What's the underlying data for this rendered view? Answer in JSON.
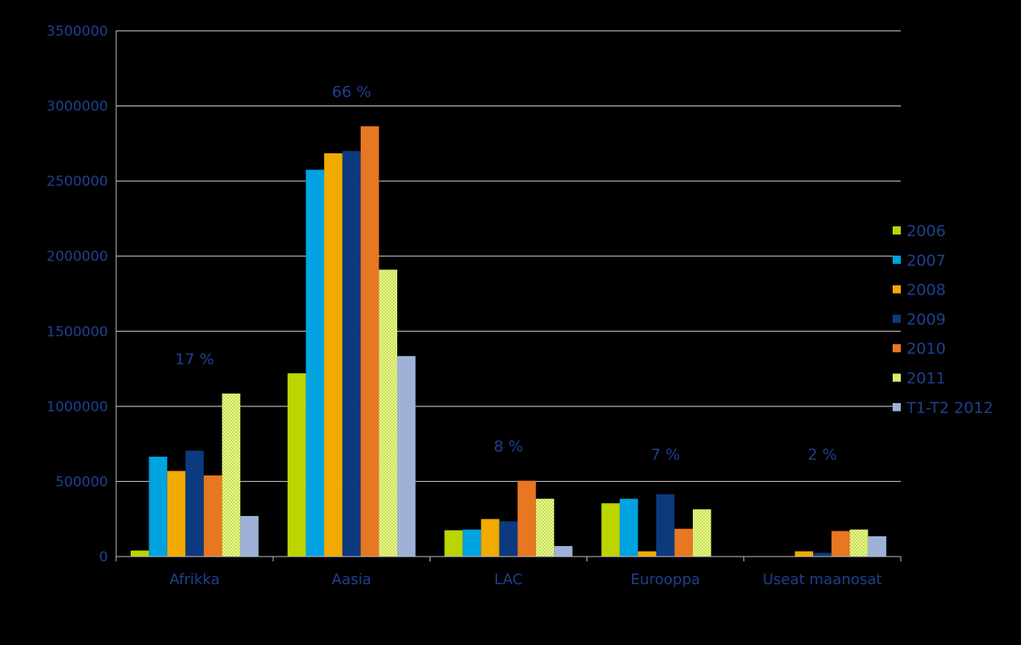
{
  "chart_data": {
    "type": "bar",
    "categories": [
      "Afrikka",
      "Aasia",
      "LAC",
      "Eurooppa",
      "Useat maanosat"
    ],
    "series": [
      {
        "name": "2006",
        "color": "#bcd400",
        "pattern": "solid",
        "values": [
          40000,
          1220000,
          175000,
          355000,
          0
        ]
      },
      {
        "name": "2007",
        "color": "#00a2e0",
        "pattern": "solid",
        "values": [
          665000,
          2575000,
          180000,
          385000,
          0
        ]
      },
      {
        "name": "2008",
        "color": "#f2a900",
        "pattern": "solid",
        "values": [
          570000,
          2685000,
          250000,
          35000,
          35000
        ]
      },
      {
        "name": "2009",
        "color": "#0b3a7e",
        "pattern": "solid",
        "values": [
          705000,
          2700000,
          235000,
          415000,
          25000
        ]
      },
      {
        "name": "2010",
        "color": "#e87722",
        "pattern": "solid",
        "values": [
          540000,
          2865000,
          505000,
          185000,
          170000
        ]
      },
      {
        "name": "2011",
        "color": "#cde34f",
        "pattern": "dotted",
        "values": [
          1085000,
          1910000,
          385000,
          315000,
          180000
        ]
      },
      {
        "name": "T1-T2 2012",
        "color": "#9fb1d6",
        "pattern": "solid",
        "values": [
          270000,
          1335000,
          70000,
          0,
          135000
        ]
      }
    ],
    "annotations": [
      "17 %",
      "66 %",
      "8 %",
      "7 %",
      "2 %"
    ],
    "ylim": [
      0,
      3500000
    ],
    "yticks": [
      "0",
      "500000",
      "1000000",
      "1500000",
      "2000000",
      "2500000",
      "3000000",
      "3500000"
    ],
    "title": "",
    "xlabel": "",
    "ylabel": "",
    "grid": true,
    "legend_position": "right",
    "colors": {
      "background": "#000000",
      "axis_text": "#1f3f8f",
      "gridline": "#d9d9d9",
      "axis_line": "#bfbfbf"
    }
  }
}
